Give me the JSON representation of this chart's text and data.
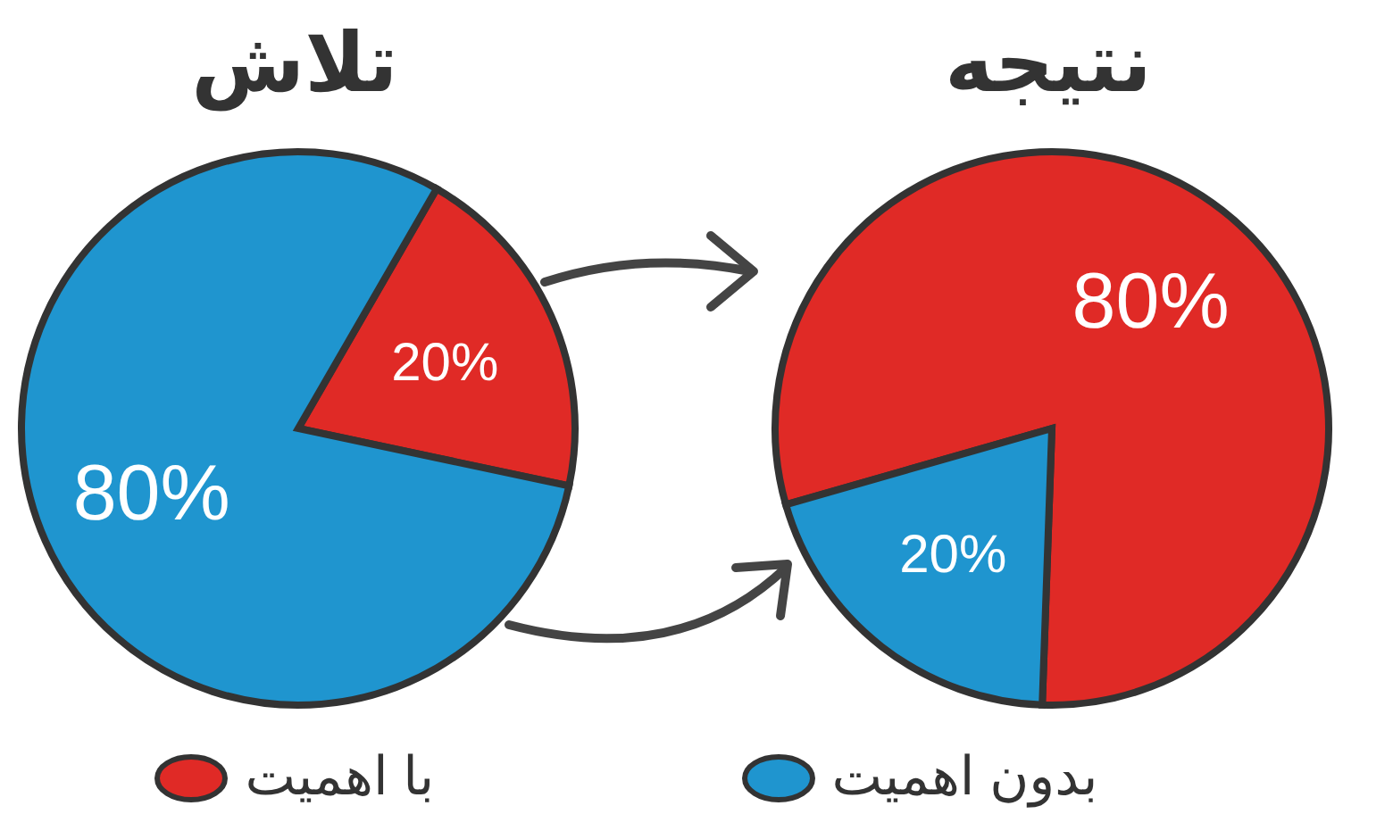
{
  "chart_data": [
    {
      "type": "pie",
      "title": "تلاش",
      "categories": [
        "با اهمیت",
        "بدون اهمیت"
      ],
      "values": [
        20,
        80
      ],
      "colors": [
        "#e02a26",
        "#1f95cf"
      ],
      "value_labels": [
        "20%",
        "80%"
      ],
      "legend": "bottom"
    },
    {
      "type": "pie",
      "title": "نتیجه",
      "categories": [
        null,
        null
      ],
      "values": [
        80,
        20
      ],
      "colors": [
        "#e02a26",
        "#1f95cf"
      ],
      "value_labels": [
        "80%",
        "20%"
      ]
    }
  ]
}
